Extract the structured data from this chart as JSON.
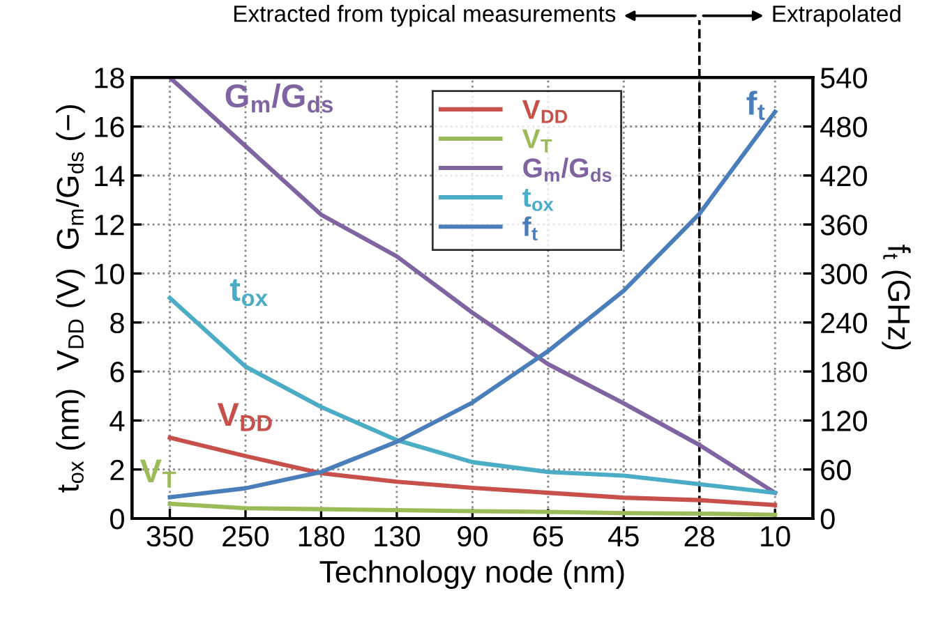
{
  "chart_data": {
    "type": "line",
    "xlabel": "Technology node (nm)",
    "ylabel": "t$_{ox}$ (nm)  V$_{DD}$ (V)  G$_{m}$/G$_{ds}$ (−)",
    "y2label": "f$_{t}$ (GHz)",
    "categories": [
      "350",
      "250",
      "180",
      "130",
      "90",
      "65",
      "45",
      "28",
      "10"
    ],
    "series": [
      {
        "name": "V$_{DD}$",
        "color": "#c8504b",
        "values": [
          3.3,
          2.55,
          1.85,
          1.5,
          1.25,
          1.05,
          0.85,
          0.75,
          0.55
        ]
      },
      {
        "name": "V$_{T}$",
        "color": "#9bbb59",
        "values": [
          0.6,
          0.42,
          0.38,
          0.34,
          0.3,
          0.27,
          0.22,
          0.2,
          0.15
        ]
      },
      {
        "name": "G$_{m}$/G$_{ds}$",
        "color": "#8064a2",
        "values": [
          18,
          15.2,
          12.4,
          10.7,
          8.4,
          6.3,
          4.7,
          3.0,
          1.05
        ]
      },
      {
        "name": "t$_{ox}$",
        "color": "#4bacc6",
        "values": [
          9.0,
          6.2,
          4.55,
          3.2,
          2.3,
          1.9,
          1.75,
          1.4,
          1.05
        ]
      },
      {
        "name": "f$_{t}$",
        "color": "#4a7ebb",
        "axis": "y2",
        "values": [
          26,
          37,
          57,
          94,
          142,
          205,
          279,
          373,
          498
        ]
      }
    ],
    "ylim": [
      0,
      18
    ],
    "yticks": [
      0,
      2,
      4,
      6,
      8,
      10,
      12,
      14,
      16,
      18
    ],
    "y2lim": [
      0,
      540
    ],
    "y2ticks": [
      0,
      60,
      120,
      180,
      240,
      300,
      360,
      420,
      480,
      540
    ],
    "ref_lines": [
      {
        "axis": "x",
        "value": "28",
        "color": "#000000",
        "line_style": "dashed"
      }
    ],
    "annotations": [
      "Extracted from typical measurements",
      "Extrapolated"
    ],
    "grid": true,
    "legend": "top",
    "line_style": "solid",
    "marker": "none"
  }
}
